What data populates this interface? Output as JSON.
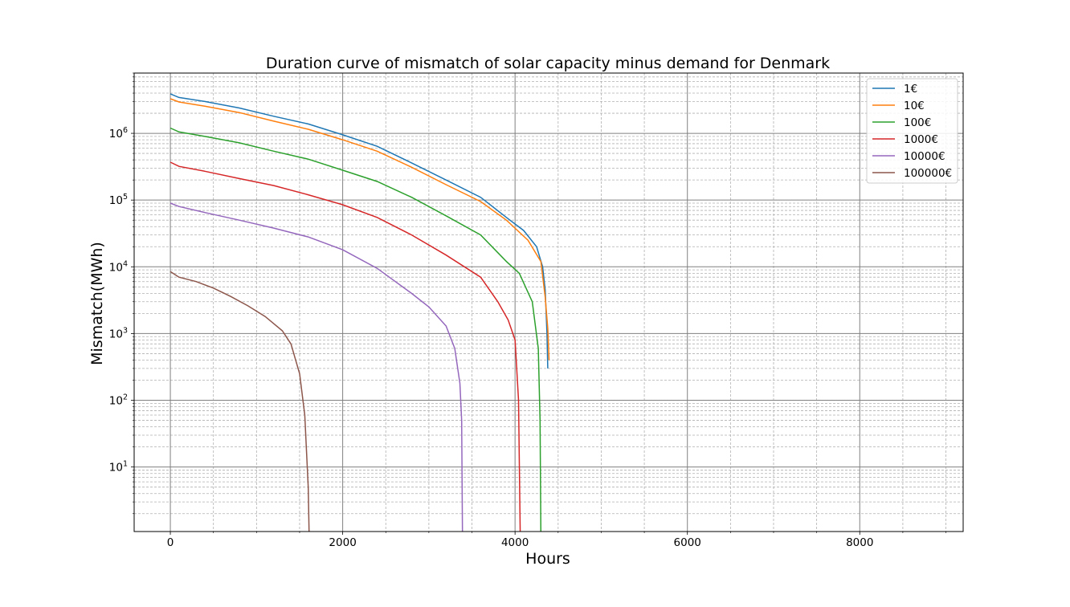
{
  "chart_data": {
    "type": "line",
    "title": "Duration curve of mismatch of solar capacity minus demand for Denmark",
    "xlabel": "Hours",
    "ylabel": "Mismatch(MWh)",
    "xlim": [
      -420,
      9200
    ],
    "ylim": [
      1.08,
      8000000
    ],
    "yscale": "log",
    "grid": true,
    "legend_position": "top-right",
    "x_ticks": [
      {
        "value": 0,
        "label": "0"
      },
      {
        "value": 2000,
        "label": "2000"
      },
      {
        "value": 4000,
        "label": "4000"
      },
      {
        "value": 6000,
        "label": "6000"
      },
      {
        "value": 8000,
        "label": "8000"
      }
    ],
    "y_ticks": [
      {
        "value": 10,
        "base": "10",
        "exp": "1"
      },
      {
        "value": 100,
        "base": "10",
        "exp": "2"
      },
      {
        "value": 1000,
        "base": "10",
        "exp": "3"
      },
      {
        "value": 10000,
        "base": "10",
        "exp": "4"
      },
      {
        "value": 100000,
        "base": "10",
        "exp": "5"
      },
      {
        "value": 1000000,
        "base": "10",
        "exp": "6"
      }
    ],
    "series": [
      {
        "name": "1€",
        "color": "#1f77b4",
        "points": [
          [
            0,
            3900000
          ],
          [
            100,
            3450000
          ],
          [
            400,
            3000000
          ],
          [
            800,
            2400000
          ],
          [
            1200,
            1800000
          ],
          [
            1600,
            1380000
          ],
          [
            2000,
            950000
          ],
          [
            2400,
            640000
          ],
          [
            2800,
            360000
          ],
          [
            3200,
            200000
          ],
          [
            3600,
            110000
          ],
          [
            3900,
            55000
          ],
          [
            4100,
            35000
          ],
          [
            4250,
            20000
          ],
          [
            4320,
            10000
          ],
          [
            4350,
            4500
          ],
          [
            4370,
            1000
          ],
          [
            4380,
            300
          ]
        ]
      },
      {
        "name": "10€",
        "color": "#ff7f0e",
        "points": [
          [
            0,
            3300000
          ],
          [
            100,
            2950000
          ],
          [
            400,
            2550000
          ],
          [
            800,
            2050000
          ],
          [
            1200,
            1520000
          ],
          [
            1600,
            1150000
          ],
          [
            2000,
            800000
          ],
          [
            2400,
            540000
          ],
          [
            2800,
            310000
          ],
          [
            3200,
            170000
          ],
          [
            3600,
            95000
          ],
          [
            3900,
            50000
          ],
          [
            4150,
            25000
          ],
          [
            4300,
            12000
          ],
          [
            4350,
            3500
          ],
          [
            4380,
            1200
          ],
          [
            4395,
            400
          ]
        ]
      },
      {
        "name": "100€",
        "color": "#2ca02c",
        "points": [
          [
            0,
            1200000
          ],
          [
            100,
            1050000
          ],
          [
            400,
            900000
          ],
          [
            800,
            720000
          ],
          [
            1200,
            540000
          ],
          [
            1600,
            410000
          ],
          [
            2000,
            280000
          ],
          [
            2400,
            190000
          ],
          [
            2800,
            110000
          ],
          [
            3200,
            58000
          ],
          [
            3600,
            30000
          ],
          [
            3900,
            12000
          ],
          [
            4050,
            8000
          ],
          [
            4200,
            3000
          ],
          [
            4270,
            600
          ],
          [
            4290,
            50
          ],
          [
            4300,
            1
          ]
        ]
      },
      {
        "name": "1000€",
        "color": "#d62728",
        "points": [
          [
            0,
            370000
          ],
          [
            100,
            320000
          ],
          [
            400,
            270000
          ],
          [
            800,
            210000
          ],
          [
            1200,
            165000
          ],
          [
            1600,
            120000
          ],
          [
            2000,
            85000
          ],
          [
            2400,
            55000
          ],
          [
            2800,
            30000
          ],
          [
            3200,
            15000
          ],
          [
            3600,
            7000
          ],
          [
            3800,
            3000
          ],
          [
            3920,
            1600
          ],
          [
            4000,
            800
          ],
          [
            4040,
            100
          ],
          [
            4060,
            1
          ]
        ]
      },
      {
        "name": "10000€",
        "color": "#9467bd",
        "points": [
          [
            0,
            90000
          ],
          [
            100,
            80000
          ],
          [
            400,
            65000
          ],
          [
            800,
            50000
          ],
          [
            1200,
            38000
          ],
          [
            1600,
            28000
          ],
          [
            2000,
            18000
          ],
          [
            2400,
            9500
          ],
          [
            2800,
            4000
          ],
          [
            3000,
            2500
          ],
          [
            3200,
            1300
          ],
          [
            3300,
            600
          ],
          [
            3360,
            180
          ],
          [
            3380,
            50
          ],
          [
            3390,
            1
          ]
        ]
      },
      {
        "name": "100000€",
        "color": "#8c564b",
        "points": [
          [
            0,
            8500
          ],
          [
            100,
            7000
          ],
          [
            300,
            6000
          ],
          [
            500,
            4800
          ],
          [
            700,
            3600
          ],
          [
            900,
            2600
          ],
          [
            1100,
            1800
          ],
          [
            1300,
            1100
          ],
          [
            1400,
            700
          ],
          [
            1500,
            250
          ],
          [
            1560,
            60
          ],
          [
            1600,
            5
          ],
          [
            1610,
            1
          ]
        ]
      }
    ]
  }
}
